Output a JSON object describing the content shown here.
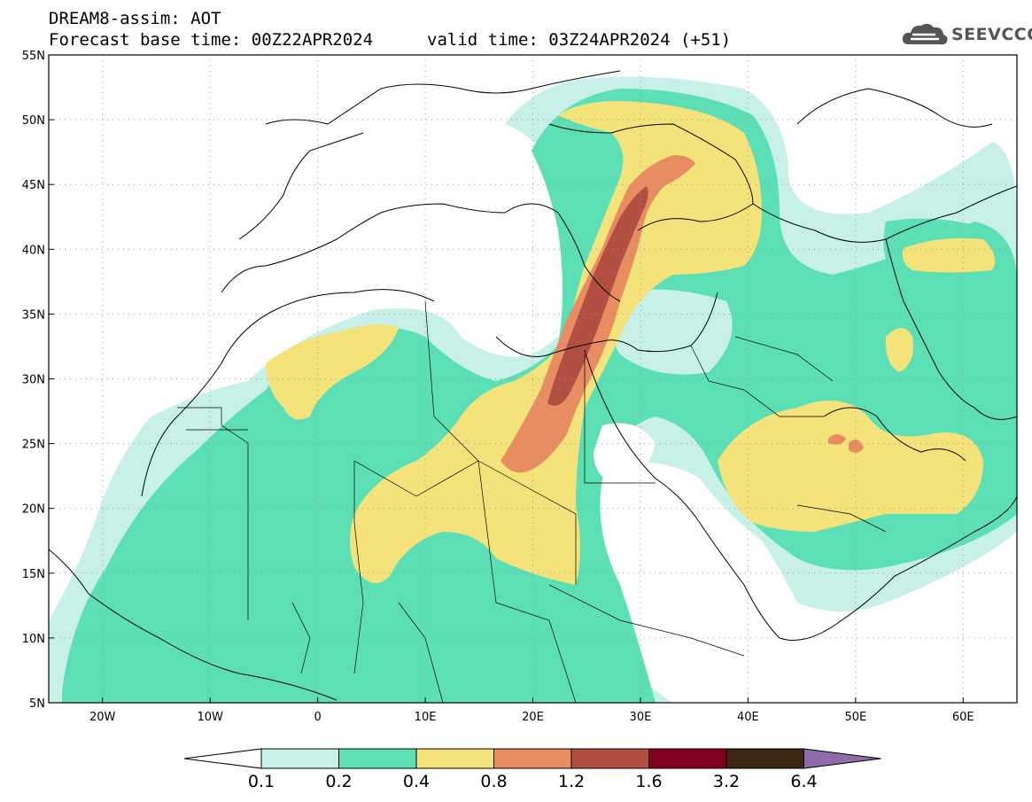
{
  "header": {
    "title_line1": "DREAM8-assim: AOT",
    "title_line2": "Forecast base time: 00Z22APR2024",
    "valid_time": "valid time: 03Z24APR2024 (+51)"
  },
  "logo": {
    "text": "SEEVCCC",
    "icon": "cloud-icon"
  },
  "map": {
    "lat_labels": [
      "55N",
      "50N",
      "45N",
      "40N",
      "35N",
      "30N",
      "25N",
      "20N",
      "15N",
      "10N",
      "5N"
    ],
    "lon_labels": [
      "20W",
      "10W",
      "0",
      "10E",
      "20E",
      "30E",
      "40E",
      "50E",
      "60E"
    ],
    "grid": "dotted",
    "colors": {
      "c01": "#c6f0e8",
      "c02": "#5ddfb6",
      "c04": "#f4e27a",
      "c08": "#e88c62",
      "c12": "#b34e42",
      "c16": "#800020",
      "c32": "#3d2515",
      "c64": "#8e6bab",
      "borders": "#000000"
    }
  },
  "colorbar": {
    "labels": [
      "0.1",
      "0.2",
      "0.4",
      "0.8",
      "1.2",
      "1.6",
      "3.2",
      "6.4"
    ],
    "colors": [
      "#ffffff",
      "#c6f0e8",
      "#5ddfb6",
      "#f4e27a",
      "#e88c62",
      "#b34e42",
      "#800020",
      "#3d2515",
      "#8e6bab"
    ]
  }
}
